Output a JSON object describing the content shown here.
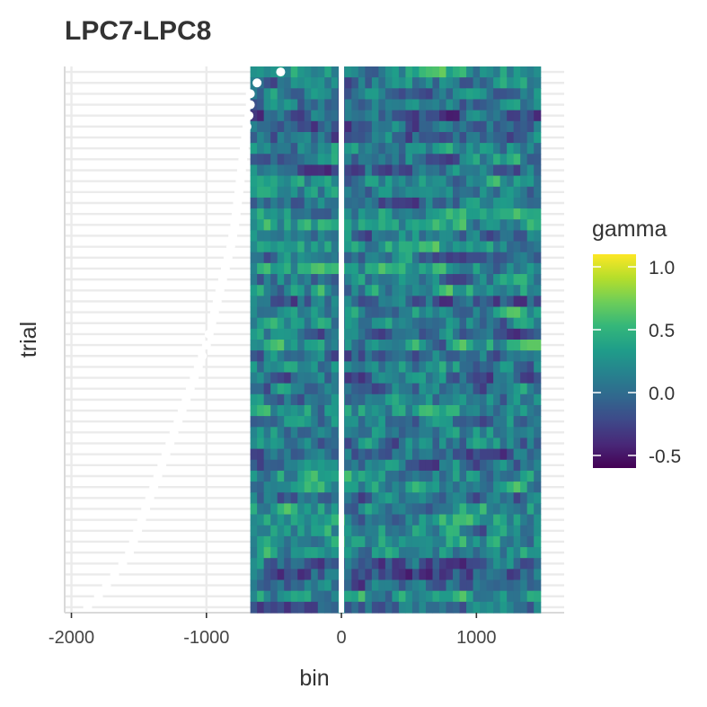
{
  "chart_data": {
    "type": "heatmap",
    "title": "LPC7-LPC8",
    "xlabel": "bin",
    "ylabel": "trial",
    "xlim": [
      -2050,
      1650
    ],
    "x_ticks": [
      -2000,
      -1000,
      0,
      1000
    ],
    "x_tick_labels": [
      "-2000",
      "-1000",
      "0",
      "1000"
    ],
    "y_tick_labels": [],
    "trials": 50,
    "heatmap_x_range": [
      -675,
      1475
    ],
    "bin_width": 50,
    "value_range": [
      -0.6,
      1.1
    ],
    "legend": {
      "title": "gamma",
      "position": "right",
      "ticks": [
        1.0,
        0.5,
        0.0,
        -0.5
      ],
      "tick_labels": [
        "1.0",
        "0.5",
        "0.0",
        "-0.5"
      ],
      "colormap": "viridis",
      "colors": [
        "#440154",
        "#482878",
        "#3e4989",
        "#31688e",
        "#26828e",
        "#1f9e89",
        "#35b779",
        "#6ece58",
        "#b5de2b",
        "#fde725"
      ]
    },
    "reference_line_x": 0,
    "event_points": {
      "description": "white markers of event onset per trial",
      "x": [
        -450,
        -625,
        -675,
        -675,
        -685,
        -700,
        -710,
        -720,
        -730,
        -740,
        -750,
        -760,
        -770,
        -780,
        -790,
        -805,
        -820,
        -840,
        -860,
        -880,
        -900,
        -920,
        -940,
        -960,
        -980,
        -1000,
        -1030,
        -1060,
        -1090,
        -1120,
        -1150,
        -1180,
        -1210,
        -1240,
        -1270,
        -1300,
        -1330,
        -1360,
        -1390,
        -1420,
        -1450,
        -1480,
        -1510,
        -1540,
        -1570,
        -1620,
        -1680,
        -1740,
        -1800,
        -1880
      ]
    },
    "grid": true,
    "background": "#ffffff",
    "grid_color": "#ebebeb"
  }
}
